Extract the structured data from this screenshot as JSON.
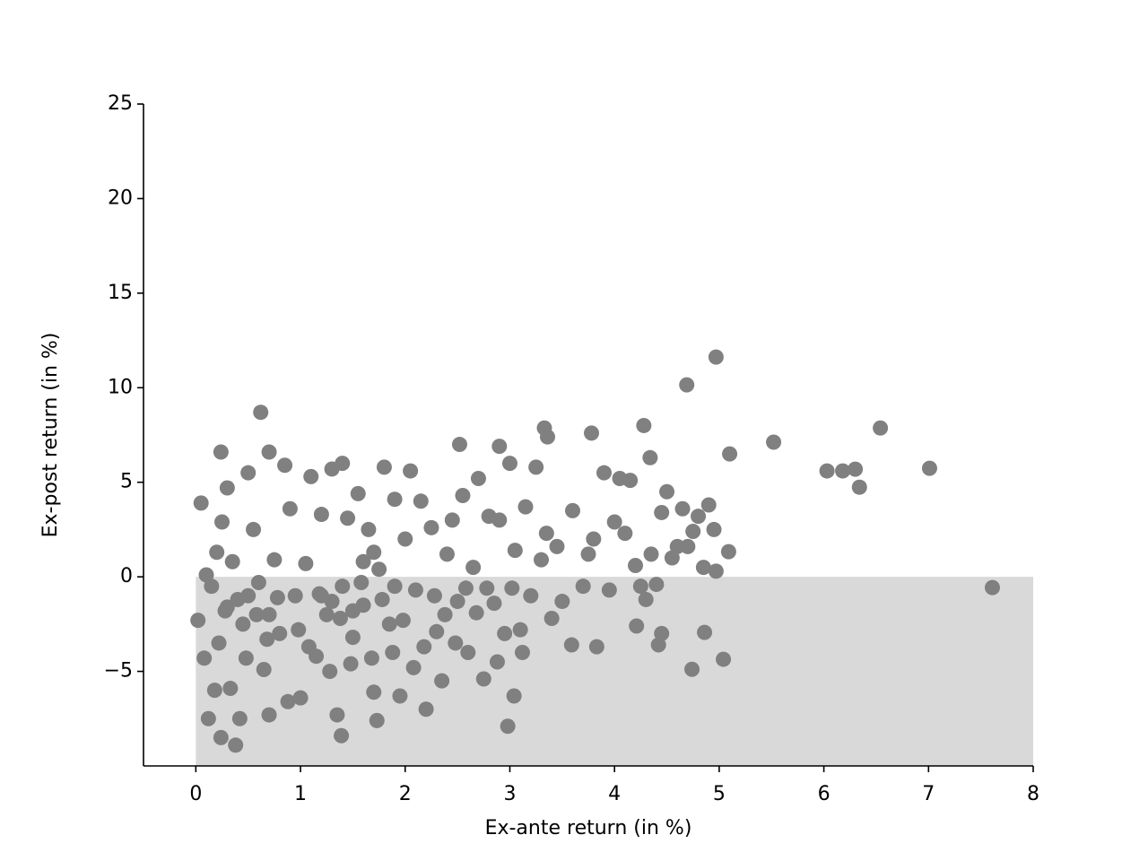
{
  "chart_data": {
    "type": "scatter",
    "xlabel": "Ex-ante return (in %)",
    "ylabel": "Ex-post return (in %)",
    "color": "#808080",
    "xlim": [
      -0.5,
      8
    ],
    "ylim": [
      -10,
      25
    ],
    "xticks": [
      0,
      1,
      2,
      3,
      4,
      5,
      6,
      7,
      8
    ],
    "yticks": [
      {
        "value": -5,
        "label": "−5"
      },
      0,
      5,
      10,
      15,
      20,
      25
    ],
    "shade": {
      "xlim": [
        0,
        8
      ],
      "ylim": [
        -10,
        0
      ],
      "color": "#d9d9d9"
    },
    "x": [
      4.97,
      4.69,
      7.61,
      7.01,
      6.54,
      6.34,
      6.3,
      6.18,
      6.03,
      5.52,
      5.1,
      5.09,
      5.04,
      4.74,
      4.86,
      0.62,
      3.33,
      3.36,
      4.28,
      4.34,
      3.78,
      2.52,
      2.9,
      2.98,
      3.04,
      1.39,
      0.38,
      0.24,
      0.24,
      0.7,
      1.73,
      3.83,
      3.59,
      4.45,
      4.42,
      4.21,
      0.05,
      0.1,
      0.15,
      0.2,
      0.25,
      0.3,
      0.35,
      0.4,
      0.45,
      0.5,
      0.55,
      0.6,
      0.65,
      0.7,
      0.75,
      0.8,
      0.85,
      0.9,
      0.95,
      1.0,
      1.05,
      1.1,
      1.15,
      1.2,
      1.25,
      1.3,
      1.35,
      1.4,
      1.45,
      1.5,
      1.55,
      1.6,
      1.65,
      1.7,
      1.75,
      1.8,
      1.85,
      1.9,
      1.95,
      2.0,
      2.05,
      2.1,
      2.15,
      2.2,
      2.25,
      2.3,
      2.35,
      2.4,
      2.45,
      2.5,
      2.55,
      2.6,
      2.65,
      2.7,
      2.75,
      2.8,
      2.85,
      2.9,
      2.95,
      3.0,
      3.05,
      3.1,
      3.15,
      3.2,
      3.25,
      3.3,
      3.35,
      3.4,
      3.45,
      3.5,
      3.6,
      3.7,
      3.75,
      3.8,
      3.9,
      3.95,
      4.0,
      4.05,
      4.1,
      4.15,
      4.2,
      4.25,
      4.3,
      4.35,
      4.4,
      4.45,
      4.5,
      4.55,
      4.6,
      4.65,
      4.7,
      4.75,
      4.8,
      4.85,
      4.9,
      4.95,
      4.97,
      0.02,
      0.08,
      0.12,
      0.18,
      0.22,
      0.28,
      0.33,
      0.42,
      0.48,
      0.58,
      0.68,
      0.78,
      0.88,
      0.98,
      1.08,
      1.18,
      1.28,
      1.38,
      1.48,
      1.58,
      1.68,
      1.78,
      1.88,
      1.98,
      2.08,
      2.18,
      2.28,
      2.38,
      2.48,
      2.58,
      2.68,
      2.78,
      2.88,
      3.02,
      3.12,
      0.3,
      0.5,
      0.7,
      1.3,
      1.4,
      1.5,
      1.2,
      1.6,
      1.7,
      1.9
    ],
    "y": [
      11.62,
      10.15,
      -0.57,
      5.74,
      7.87,
      4.74,
      5.69,
      5.6,
      5.6,
      7.12,
      6.5,
      1.33,
      -4.36,
      -4.89,
      -2.94,
      8.7,
      7.87,
      7.4,
      8.0,
      6.3,
      7.6,
      7.0,
      6.9,
      -7.9,
      -6.3,
      -8.4,
      -8.9,
      -8.5,
      6.6,
      6.6,
      -7.6,
      -3.7,
      -3.6,
      -3.0,
      -3.6,
      -2.6,
      3.9,
      0.1,
      -0.5,
      1.3,
      2.9,
      4.7,
      0.8,
      -1.2,
      -2.5,
      5.5,
      2.5,
      -0.3,
      -4.9,
      -7.3,
      0.9,
      -3.0,
      5.9,
      3.6,
      -1.0,
      -6.4,
      0.7,
      5.3,
      -4.2,
      3.3,
      -2.0,
      5.7,
      -7.3,
      6.0,
      3.1,
      -3.2,
      4.4,
      -1.5,
      2.5,
      -6.1,
      0.4,
      5.8,
      -2.5,
      4.1,
      -6.3,
      2.0,
      5.6,
      -0.7,
      4.0,
      -7.0,
      2.6,
      -2.9,
      -5.5,
      1.2,
      3.0,
      -1.3,
      4.3,
      -4.0,
      0.5,
      5.2,
      -5.4,
      3.2,
      -1.4,
      3.0,
      -3.0,
      6.0,
      1.4,
      -2.8,
      3.7,
      -1.0,
      5.8,
      0.9,
      2.3,
      -2.2,
      1.6,
      -1.3,
      3.5,
      -0.5,
      1.2,
      2.0,
      5.5,
      -0.7,
      2.9,
      5.2,
      2.3,
      5.1,
      0.6,
      -0.5,
      -1.2,
      1.2,
      -0.4,
      3.4,
      4.5,
      1.0,
      1.6,
      3.6,
      1.6,
      2.4,
      3.2,
      0.5,
      3.8,
      2.5,
      0.3,
      -2.3,
      -4.3,
      -7.5,
      -6.0,
      -3.5,
      -1.8,
      -5.9,
      -7.5,
      -4.3,
      -2.0,
      -3.3,
      -1.1,
      -6.6,
      -2.8,
      -3.7,
      -0.9,
      -5.0,
      -2.2,
      -4.6,
      -0.3,
      -4.3,
      -1.2,
      -4.0,
      -2.3,
      -4.8,
      -3.7,
      -1.0,
      -2.0,
      -3.5,
      -0.6,
      -1.9,
      -0.6,
      -4.5,
      -0.6,
      -4.0,
      -1.6,
      -1.0,
      -2.0,
      -1.3,
      -0.5,
      -1.8,
      -1.0,
      0.8,
      1.3,
      -0.5
    ]
  }
}
